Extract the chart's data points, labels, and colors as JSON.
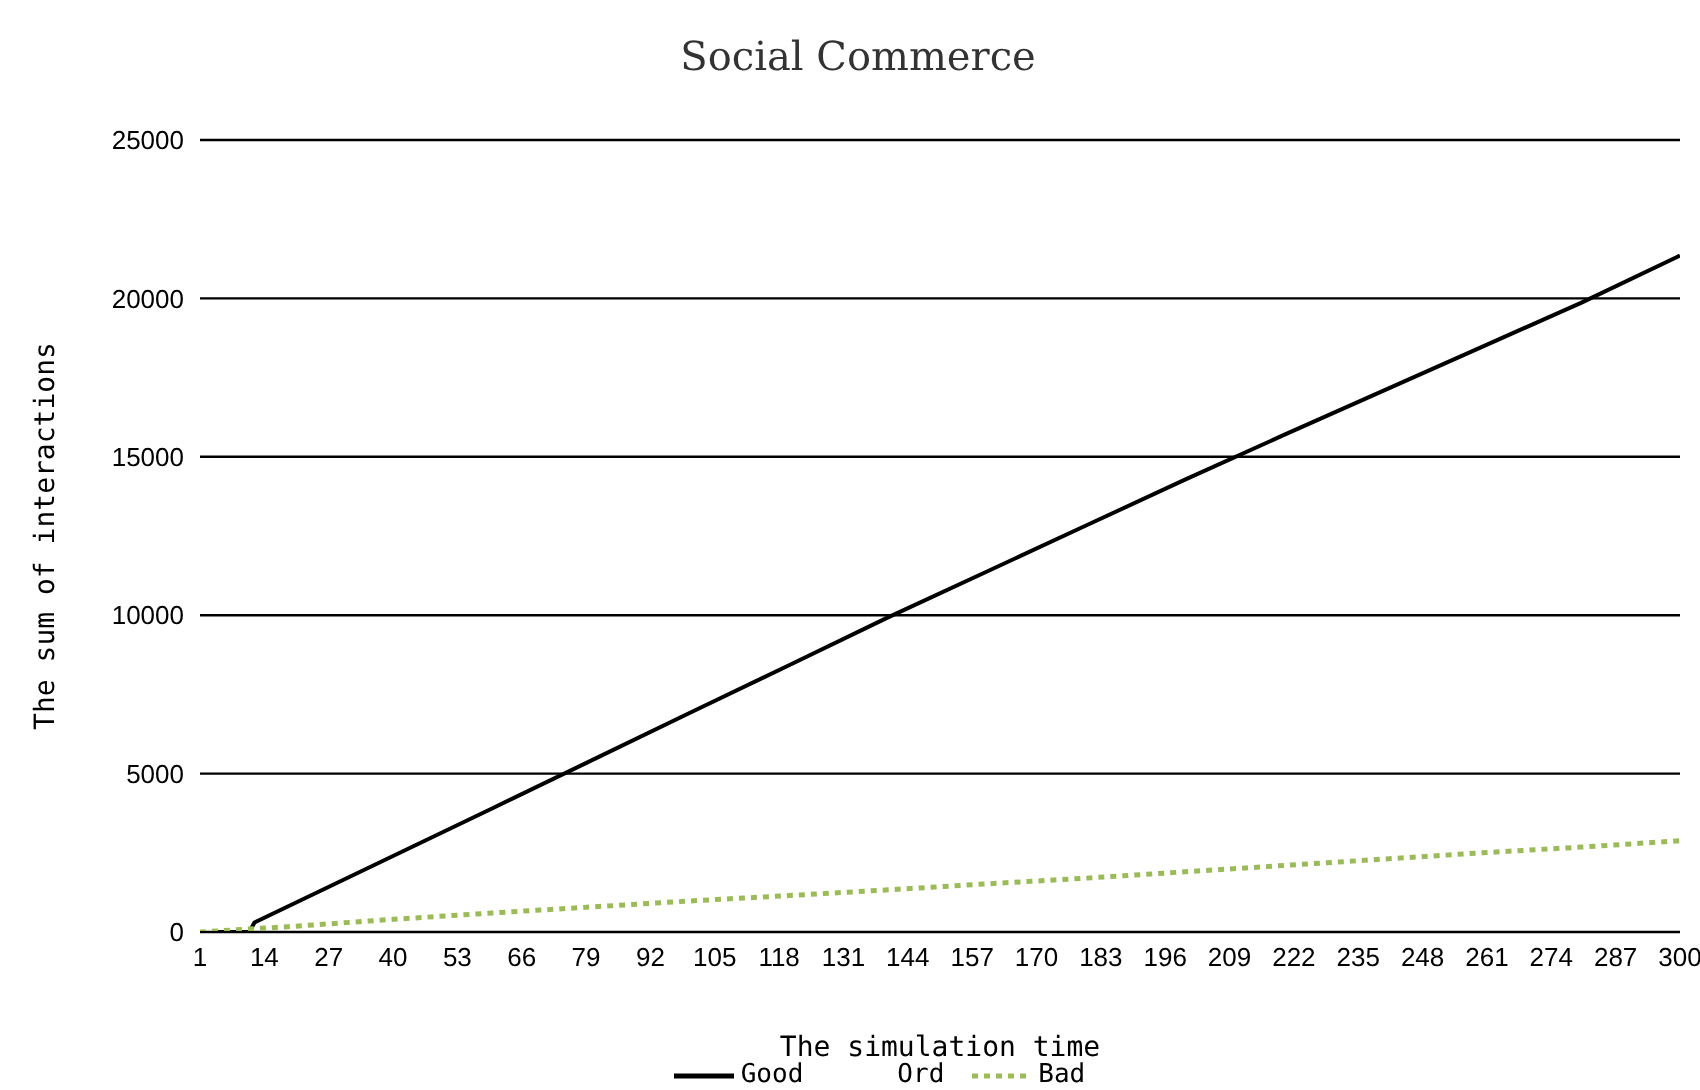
{
  "chart_data": {
    "type": "line",
    "title": "Social Commerce",
    "xlabel": "The simulation time",
    "ylabel": "The sum of interactions",
    "xlim": [
      1,
      300
    ],
    "xticks": [
      1,
      14,
      27,
      40,
      53,
      66,
      79,
      92,
      105,
      118,
      131,
      144,
      157,
      170,
      183,
      196,
      209,
      222,
      235,
      248,
      261,
      274,
      287,
      300
    ],
    "ylim": [
      0,
      25000
    ],
    "yticks": [
      0,
      5000,
      10000,
      15000,
      20000,
      25000
    ],
    "grid": "y",
    "legend": "bottom",
    "marker": "none",
    "series": [
      {
        "name": "Good",
        "color": "#000000",
        "line_style": "solid",
        "x": [
          4,
          11,
          12,
          20,
          40,
          60,
          80,
          100,
          120,
          140,
          160,
          180,
          200,
          220,
          240,
          260,
          280,
          300
        ],
        "values": [
          0,
          0,
          300,
          900,
          2400,
          3900,
          5410,
          6920,
          8420,
          9930,
          11380,
          12830,
          14280,
          15690,
          17080,
          18470,
          19860,
          21350
        ]
      },
      {
        "name": "Ord"
      },
      {
        "name": "Bad",
        "color": "#9bbb59",
        "line_style": "dotted",
        "x": [
          1,
          20,
          40,
          60,
          80,
          100,
          120,
          140,
          160,
          180,
          200,
          220,
          240,
          260,
          280,
          300
        ],
        "values": [
          0,
          180,
          400,
          600,
          790,
          980,
          1150,
          1330,
          1520,
          1700,
          1900,
          2100,
          2300,
          2500,
          2680,
          2880
        ]
      }
    ]
  }
}
